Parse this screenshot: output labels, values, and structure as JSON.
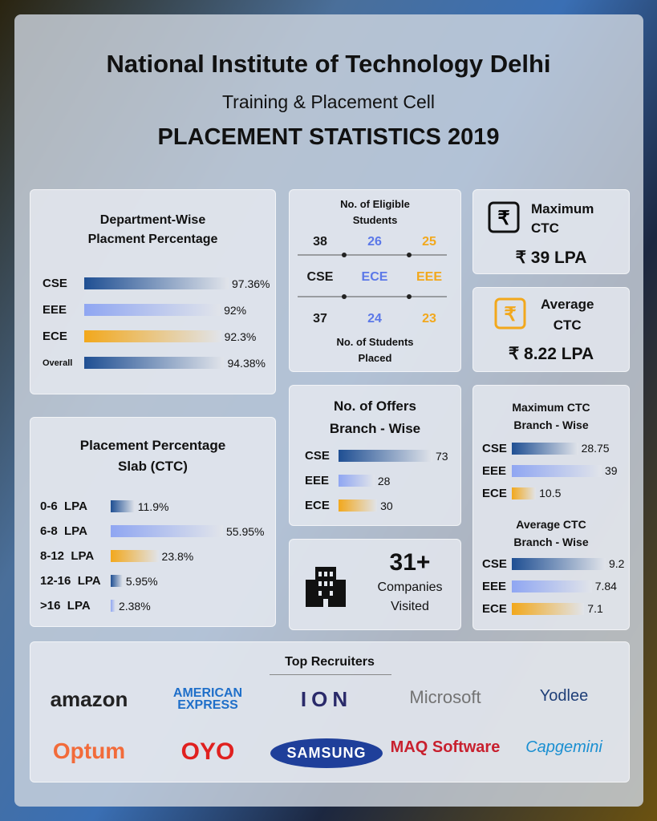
{
  "header": {
    "title": "National Institute of Technology Delhi",
    "subtitle": "Training & Placement Cell",
    "heading": "PLACEMENT STATISTICS 2019"
  },
  "department_wise": {
    "title_lines": [
      "Department-Wise",
      "Placment Percentage"
    ],
    "categories": [
      "CSE",
      "EEE",
      "ECE",
      "Overall"
    ],
    "values": [
      97.36,
      92,
      92.3,
      94.38
    ],
    "value_labels": [
      "97.36%",
      "92%",
      "92.3%",
      "94.38%"
    ],
    "colors": [
      "#1f4f93",
      "#8fa6f2",
      "#f2a81c",
      "#1f4f93"
    ]
  },
  "students": {
    "eligible_title_lines": [
      "No. of Eligible",
      "Students"
    ],
    "branches": [
      "CSE",
      "ECE",
      "EEE"
    ],
    "eligible": [
      38,
      26,
      25
    ],
    "placed": [
      37,
      24,
      23
    ],
    "placed_title_lines": [
      "No. of  Students",
      "Placed"
    ],
    "colors": [
      "#1a1a1a",
      "#5b78e8",
      "#f2a81c"
    ]
  },
  "maximum_ctc": {
    "label_lines": [
      "Maximum",
      "CTC"
    ],
    "value": "₹ 39 LPA"
  },
  "average_ctc": {
    "label_lines": [
      "Average",
      "CTC"
    ],
    "value": "₹ 8.22 LPA"
  },
  "offers": {
    "title_lines": [
      "No. of Offers",
      "Branch - Wise"
    ],
    "categories": [
      "CSE",
      "EEE",
      "ECE"
    ],
    "values": [
      73,
      28,
      30
    ],
    "colors": [
      "#1f4f93",
      "#8fa6f2",
      "#f2a81c"
    ]
  },
  "max_ctc_branch": {
    "title_lines": [
      "Maximum CTC",
      "Branch - Wise"
    ],
    "categories": [
      "CSE",
      "EEE",
      "ECE"
    ],
    "values": [
      28.75,
      39,
      10.5
    ],
    "colors": [
      "#1f4f93",
      "#8fa6f2",
      "#f2a81c"
    ]
  },
  "avg_ctc_branch": {
    "title_lines": [
      "Average CTC",
      "Branch - Wise"
    ],
    "categories": [
      "CSE",
      "EEE",
      "ECE"
    ],
    "values": [
      9.2,
      7.84,
      7.1
    ],
    "colors": [
      "#1f4f93",
      "#8fa6f2",
      "#f2a81c"
    ]
  },
  "slab": {
    "title_lines": [
      "Placement Percentage",
      "Slab (CTC)"
    ],
    "categories": [
      "0-6  LPA",
      "6-8  LPA",
      "8-12  LPA",
      "12-16  LPA",
      ">16  LPA"
    ],
    "values": [
      11.9,
      55.95,
      23.8,
      5.95,
      2.38
    ],
    "value_labels": [
      "11.9%",
      "55.95%",
      "23.8%",
      "5.95%",
      "2.38%"
    ],
    "colors": [
      "#1f4f93",
      "#8fa6f2",
      "#f2a81c",
      "#1f4f93",
      "#8fa6f2"
    ]
  },
  "companies": {
    "count": "31+",
    "label_lines": [
      "Companies",
      "Visited"
    ]
  },
  "recruiters": {
    "title": "Top Recruiters",
    "names": [
      "amazon",
      "AMERICAN EXPRESS",
      "ION",
      "Microsoft",
      "Yodlee",
      "Optum",
      "OYO",
      "SAMSUNG",
      "MAQ Software",
      "Capgemini"
    ]
  }
}
